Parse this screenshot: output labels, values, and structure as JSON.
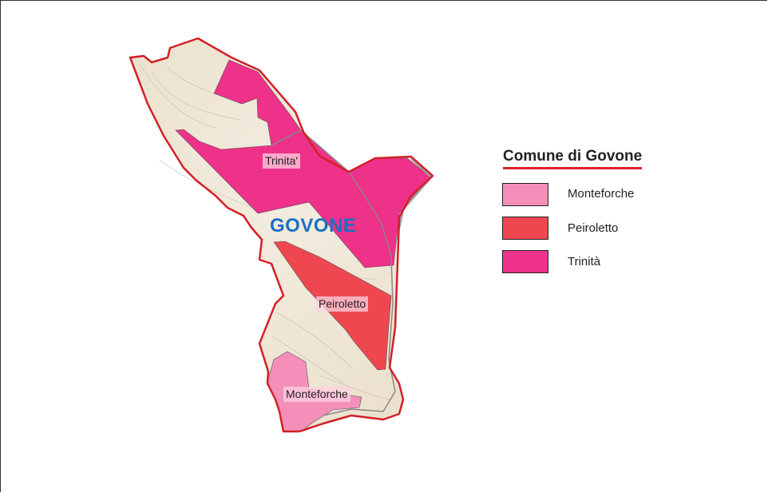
{
  "map": {
    "place_label": "GOVONE",
    "zones": [
      {
        "name": "Trinita'",
        "color": "#ee3189"
      },
      {
        "name": "Peiroletto",
        "color": "#ef474f"
      },
      {
        "name": "Monteforche",
        "color": "#f48fba"
      }
    ],
    "border_color": "#d32027"
  },
  "legend": {
    "title": "Comune di Govone",
    "items": [
      {
        "label": "Monteforche",
        "color": "#f48fba"
      },
      {
        "label": "Peiroletto",
        "color": "#ef474f"
      },
      {
        "label": "Trinità",
        "color": "#ee3189"
      }
    ]
  }
}
